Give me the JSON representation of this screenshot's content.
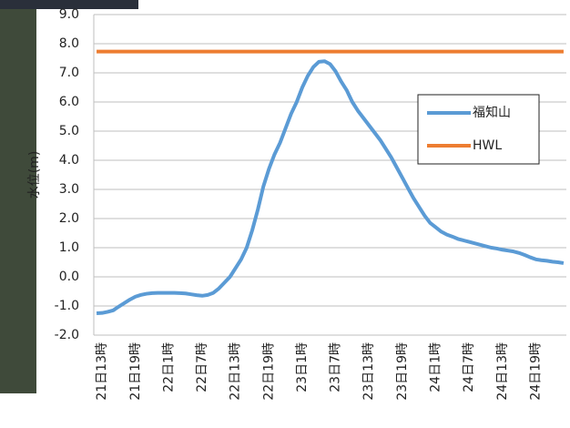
{
  "chart_data": {
    "type": "line",
    "ylabel": "水位(m)",
    "categories": [
      null,
      "21日13時",
      null,
      null,
      null,
      null,
      null,
      "21日19時",
      null,
      null,
      null,
      null,
      null,
      "22日1時",
      null,
      null,
      null,
      null,
      null,
      "22日7時",
      null,
      null,
      null,
      null,
      null,
      "22日13時",
      null,
      null,
      null,
      null,
      null,
      "22日19時",
      null,
      null,
      null,
      null,
      null,
      "23日1時",
      null,
      null,
      null,
      null,
      null,
      "23日7時",
      null,
      null,
      null,
      null,
      null,
      "23日13時",
      null,
      null,
      null,
      null,
      null,
      "23日19時",
      null,
      null,
      null,
      null,
      null,
      "24日1時",
      null,
      null,
      null,
      null,
      null,
      "24日7時",
      null,
      null,
      null,
      null,
      null,
      "24日13時",
      null,
      null,
      null,
      null,
      null,
      "24日19時",
      null,
      null,
      null,
      null,
      null
    ],
    "series": [
      {
        "name": "福知山",
        "color": "#5b9bd5",
        "values": [
          -1.25,
          -1.24,
          -1.2,
          -1.15,
          -1.02,
          -0.9,
          -0.78,
          -0.68,
          -0.62,
          -0.58,
          -0.56,
          -0.55,
          -0.55,
          -0.55,
          -0.55,
          -0.56,
          -0.57,
          -0.6,
          -0.63,
          -0.65,
          -0.62,
          -0.55,
          -0.4,
          -0.2,
          0.0,
          0.3,
          0.6,
          1.0,
          1.6,
          2.3,
          3.1,
          3.7,
          4.2,
          4.6,
          5.1,
          5.6,
          6.0,
          6.5,
          6.9,
          7.2,
          7.38,
          7.4,
          7.3,
          7.05,
          6.7,
          6.4,
          6.0,
          5.7,
          5.45,
          5.2,
          4.95,
          4.7,
          4.4,
          4.1,
          3.75,
          3.4,
          3.05,
          2.7,
          2.4,
          2.1,
          1.85,
          1.7,
          1.55,
          1.45,
          1.38,
          1.3,
          1.25,
          1.2,
          1.15,
          1.1,
          1.05,
          1.0,
          0.97,
          0.93,
          0.9,
          0.87,
          0.82,
          0.75,
          0.67,
          0.6,
          0.57,
          0.55,
          0.52,
          0.5,
          0.47
        ]
      },
      {
        "name": "HWL",
        "color": "#ed7d31",
        "values": [
          7.73,
          7.73,
          7.73,
          7.73,
          7.73,
          7.73,
          7.73,
          7.73,
          7.73,
          7.73,
          7.73,
          7.73,
          7.73,
          7.73,
          7.73,
          7.73,
          7.73,
          7.73,
          7.73,
          7.73,
          7.73,
          7.73,
          7.73,
          7.73,
          7.73,
          7.73,
          7.73,
          7.73,
          7.73,
          7.73,
          7.73,
          7.73,
          7.73,
          7.73,
          7.73,
          7.73,
          7.73,
          7.73,
          7.73,
          7.73,
          7.73,
          7.73,
          7.73,
          7.73,
          7.73,
          7.73,
          7.73,
          7.73,
          7.73,
          7.73,
          7.73,
          7.73,
          7.73,
          7.73,
          7.73,
          7.73,
          7.73,
          7.73,
          7.73,
          7.73,
          7.73,
          7.73,
          7.73,
          7.73,
          7.73,
          7.73,
          7.73,
          7.73,
          7.73,
          7.73,
          7.73,
          7.73,
          7.73,
          7.73,
          7.73,
          7.73,
          7.73,
          7.73,
          7.73,
          7.73,
          7.73,
          7.73,
          7.73,
          7.73,
          7.73
        ]
      }
    ],
    "ylim": [
      -2,
      9
    ],
    "yticks": [
      {
        "value": -2,
        "label": "-2.0"
      },
      {
        "value": -1,
        "label": "-1.0"
      },
      {
        "value": 0,
        "label": "0.0"
      },
      {
        "value": 1,
        "label": "1.0"
      },
      {
        "value": 2,
        "label": "2.0"
      },
      {
        "value": 3,
        "label": "3.0"
      },
      {
        "value": 4,
        "label": "4.0"
      },
      {
        "value": 5,
        "label": "5.0"
      },
      {
        "value": 6,
        "label": "6.0"
      },
      {
        "value": 7,
        "label": "7.0"
      },
      {
        "value": 8,
        "label": "8.0"
      },
      {
        "value": 9,
        "label": "9.0"
      }
    ],
    "grid": true,
    "legend": "right"
  }
}
